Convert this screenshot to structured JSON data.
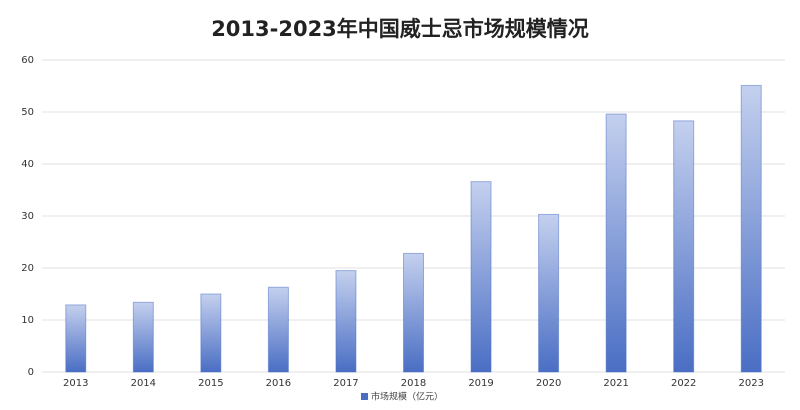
{
  "chart_data": {
    "type": "bar",
    "title": "2013-2023年中国威士忌市场规模情况",
    "categories": [
      "2013",
      "2014",
      "2015",
      "2016",
      "2017",
      "2018",
      "2019",
      "2020",
      "2021",
      "2022",
      "2023"
    ],
    "series": [
      {
        "name": "市场规模（亿元）",
        "color": "#4a6ec4",
        "values": [
          12.9,
          13.4,
          15.0,
          16.3,
          19.5,
          22.8,
          36.6,
          30.3,
          49.6,
          48.3,
          55.1
        ]
      }
    ],
    "ylim": [
      0,
      60
    ],
    "yticks": [
      0,
      10,
      20,
      30,
      40,
      50,
      60
    ],
    "grid": true
  }
}
